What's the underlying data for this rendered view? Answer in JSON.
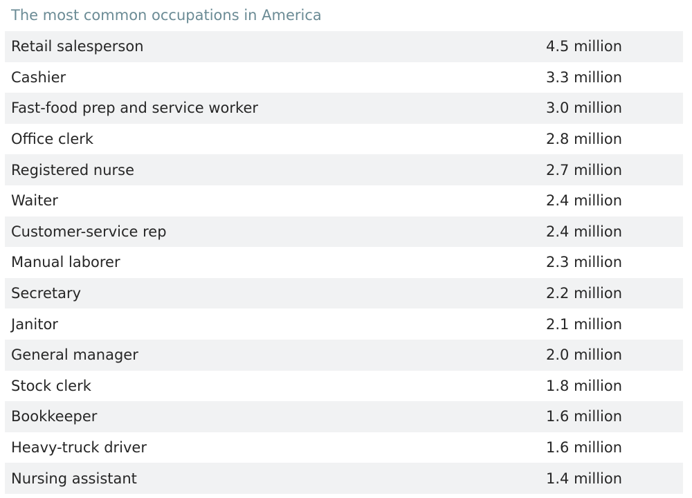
{
  "title": "The most common occupations in America",
  "rows": [
    {
      "occupation": "Retail salesperson",
      "count": "4.5 million"
    },
    {
      "occupation": "Cashier",
      "count": "3.3 million"
    },
    {
      "occupation": "Fast-food prep and service worker",
      "count": "3.0 million"
    },
    {
      "occupation": "Office clerk",
      "count": "2.8 million"
    },
    {
      "occupation": "Registered nurse",
      "count": "2.7 million"
    },
    {
      "occupation": "Waiter",
      "count": "2.4 million"
    },
    {
      "occupation": "Customer-service rep",
      "count": "2.4 million"
    },
    {
      "occupation": "Manual laborer",
      "count": "2.3 million"
    },
    {
      "occupation": "Secretary",
      "count": "2.2 million"
    },
    {
      "occupation": "Janitor",
      "count": "2.1 million"
    },
    {
      "occupation": "General manager",
      "count": "2.0 million"
    },
    {
      "occupation": "Stock clerk",
      "count": "1.8 million"
    },
    {
      "occupation": "Bookkeeper",
      "count": "1.6 million"
    },
    {
      "occupation": "Heavy-truck driver",
      "count": "1.6 million"
    },
    {
      "occupation": "Nursing assistant",
      "count": "1.4 million"
    }
  ]
}
